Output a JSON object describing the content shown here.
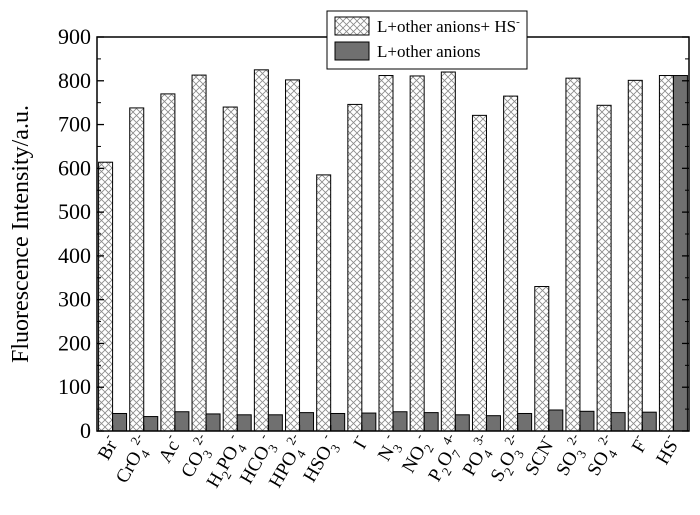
{
  "chart_data": {
    "type": "bar",
    "ylabel": "Fluorescence Intensity/a.u.",
    "xlabel": "",
    "ylim": [
      0,
      900
    ],
    "yticks": [
      0,
      100,
      200,
      300,
      400,
      500,
      600,
      700,
      800,
      900
    ],
    "grid": false,
    "legend_placement": "top-right",
    "categories": [
      {
        "base": "Br",
        "sup": "-"
      },
      {
        "base": "CrO",
        "sub": "4",
        "sup": "2-"
      },
      {
        "base": "Ac",
        "sup": "-"
      },
      {
        "base": "CO",
        "sub": "3",
        "sup": "2-"
      },
      {
        "base": "H",
        "sub": "2",
        "tail": "PO",
        "sub2": "4",
        "sup": "-"
      },
      {
        "base": "HCO",
        "sub": "3",
        "sup": "-"
      },
      {
        "base": "HPO",
        "sub": "4",
        "sup": "2-"
      },
      {
        "base": "HSO",
        "sub": "3",
        "sup": "-"
      },
      {
        "base": "I",
        "sup": "-"
      },
      {
        "base": "N",
        "sub": "3",
        "sup": "-"
      },
      {
        "base": "NO",
        "sub": "2",
        "sup": "-"
      },
      {
        "base": "P",
        "sub": "2",
        "tail": "O",
        "sub2": "7",
        "sup": "4-"
      },
      {
        "base": "PO",
        "sub": "4",
        "sup": "3-"
      },
      {
        "base": "S",
        "sub": "2",
        "tail": "O",
        "sub2": "3",
        "sup": "2-"
      },
      {
        "base": "SCN",
        "sup": "-"
      },
      {
        "base": "SO",
        "sub": "3",
        "sup": "2-"
      },
      {
        "base": "SO",
        "sub": "4",
        "sup": "2-"
      },
      {
        "base": "F",
        "sup": "-"
      },
      {
        "base": "HS",
        "sup": "-"
      }
    ],
    "series": [
      {
        "name": "L+other anions+ HS",
        "name_sup": "-",
        "pattern": "crosshatch",
        "values": [
          614,
          738,
          770,
          813,
          740,
          825,
          802,
          585,
          746,
          812,
          811,
          820,
          721,
          765,
          330,
          806,
          744,
          801,
          812
        ]
      },
      {
        "name": "L+other anions",
        "pattern": "solid",
        "color": "#707070",
        "values": [
          40,
          33,
          44,
          39,
          37,
          37,
          42,
          40,
          41,
          44,
          42,
          37,
          35,
          40,
          48,
          45,
          42,
          43,
          812
        ]
      }
    ]
  }
}
